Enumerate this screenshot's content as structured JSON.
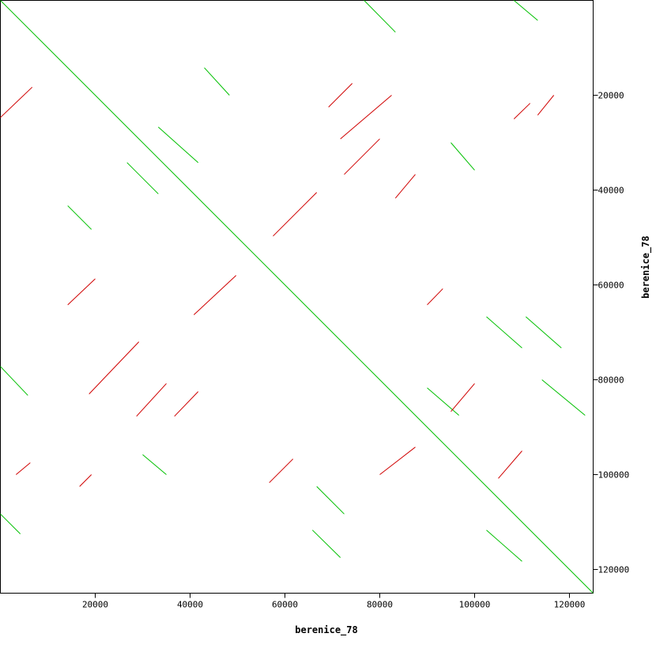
{
  "chart_data": {
    "type": "dotplot",
    "x_label": "berenice_78",
    "y_label": "berenice_78",
    "xlim": [
      0,
      125000
    ],
    "ylim": [
      0,
      125000
    ],
    "xticks": [
      20000,
      40000,
      60000,
      80000,
      100000,
      120000
    ],
    "yticks": [
      20000,
      40000,
      60000,
      80000,
      100000,
      120000
    ],
    "series": [
      {
        "color": "#00c000",
        "segments": [
          [
            0,
            0,
            125000,
            125000
          ],
          [
            0,
            77200,
            5800,
            83300
          ],
          [
            0,
            108300,
            4200,
            112500
          ],
          [
            14200,
            43300,
            19200,
            48300
          ],
          [
            26700,
            34200,
            33300,
            40800
          ],
          [
            33300,
            26700,
            41700,
            34200
          ],
          [
            43000,
            14200,
            48300,
            20000
          ],
          [
            76700,
            0,
            83300,
            6700
          ],
          [
            108300,
            0,
            113300,
            4200
          ],
          [
            102500,
            66700,
            110000,
            73300
          ],
          [
            110800,
            66700,
            118300,
            73300
          ],
          [
            66700,
            102500,
            72500,
            108300
          ],
          [
            65800,
            111700,
            71700,
            117500
          ],
          [
            102500,
            111700,
            110000,
            118300
          ],
          [
            114200,
            80000,
            123300,
            87500
          ],
          [
            95000,
            30000,
            100000,
            35800
          ],
          [
            30000,
            95800,
            35000,
            100000
          ],
          [
            90000,
            81700,
            96700,
            87500
          ]
        ]
      },
      {
        "color": "#d00000",
        "segments": [
          [
            0,
            24700,
            6700,
            18300
          ],
          [
            57500,
            49700,
            66700,
            40500
          ],
          [
            40800,
            66300,
            49700,
            58000
          ],
          [
            14200,
            64200,
            20000,
            58700
          ],
          [
            18700,
            83000,
            29200,
            72000
          ],
          [
            28700,
            87700,
            35000,
            80800
          ],
          [
            36700,
            87700,
            41700,
            82500
          ],
          [
            71700,
            29200,
            82500,
            20000
          ],
          [
            72500,
            36700,
            80000,
            29200
          ],
          [
            83300,
            41700,
            87500,
            36700
          ],
          [
            69200,
            22500,
            74200,
            17500
          ],
          [
            108300,
            25000,
            111700,
            21700
          ],
          [
            113300,
            24200,
            116700,
            20000
          ],
          [
            56700,
            101700,
            61700,
            96700
          ],
          [
            80000,
            100000,
            87500,
            94200
          ],
          [
            95000,
            86700,
            100000,
            80800
          ],
          [
            105000,
            100800,
            110000,
            95000
          ],
          [
            3300,
            100000,
            6300,
            97500
          ],
          [
            16700,
            102500,
            19200,
            100000
          ],
          [
            90000,
            64200,
            93300,
            60800
          ]
        ]
      }
    ]
  }
}
